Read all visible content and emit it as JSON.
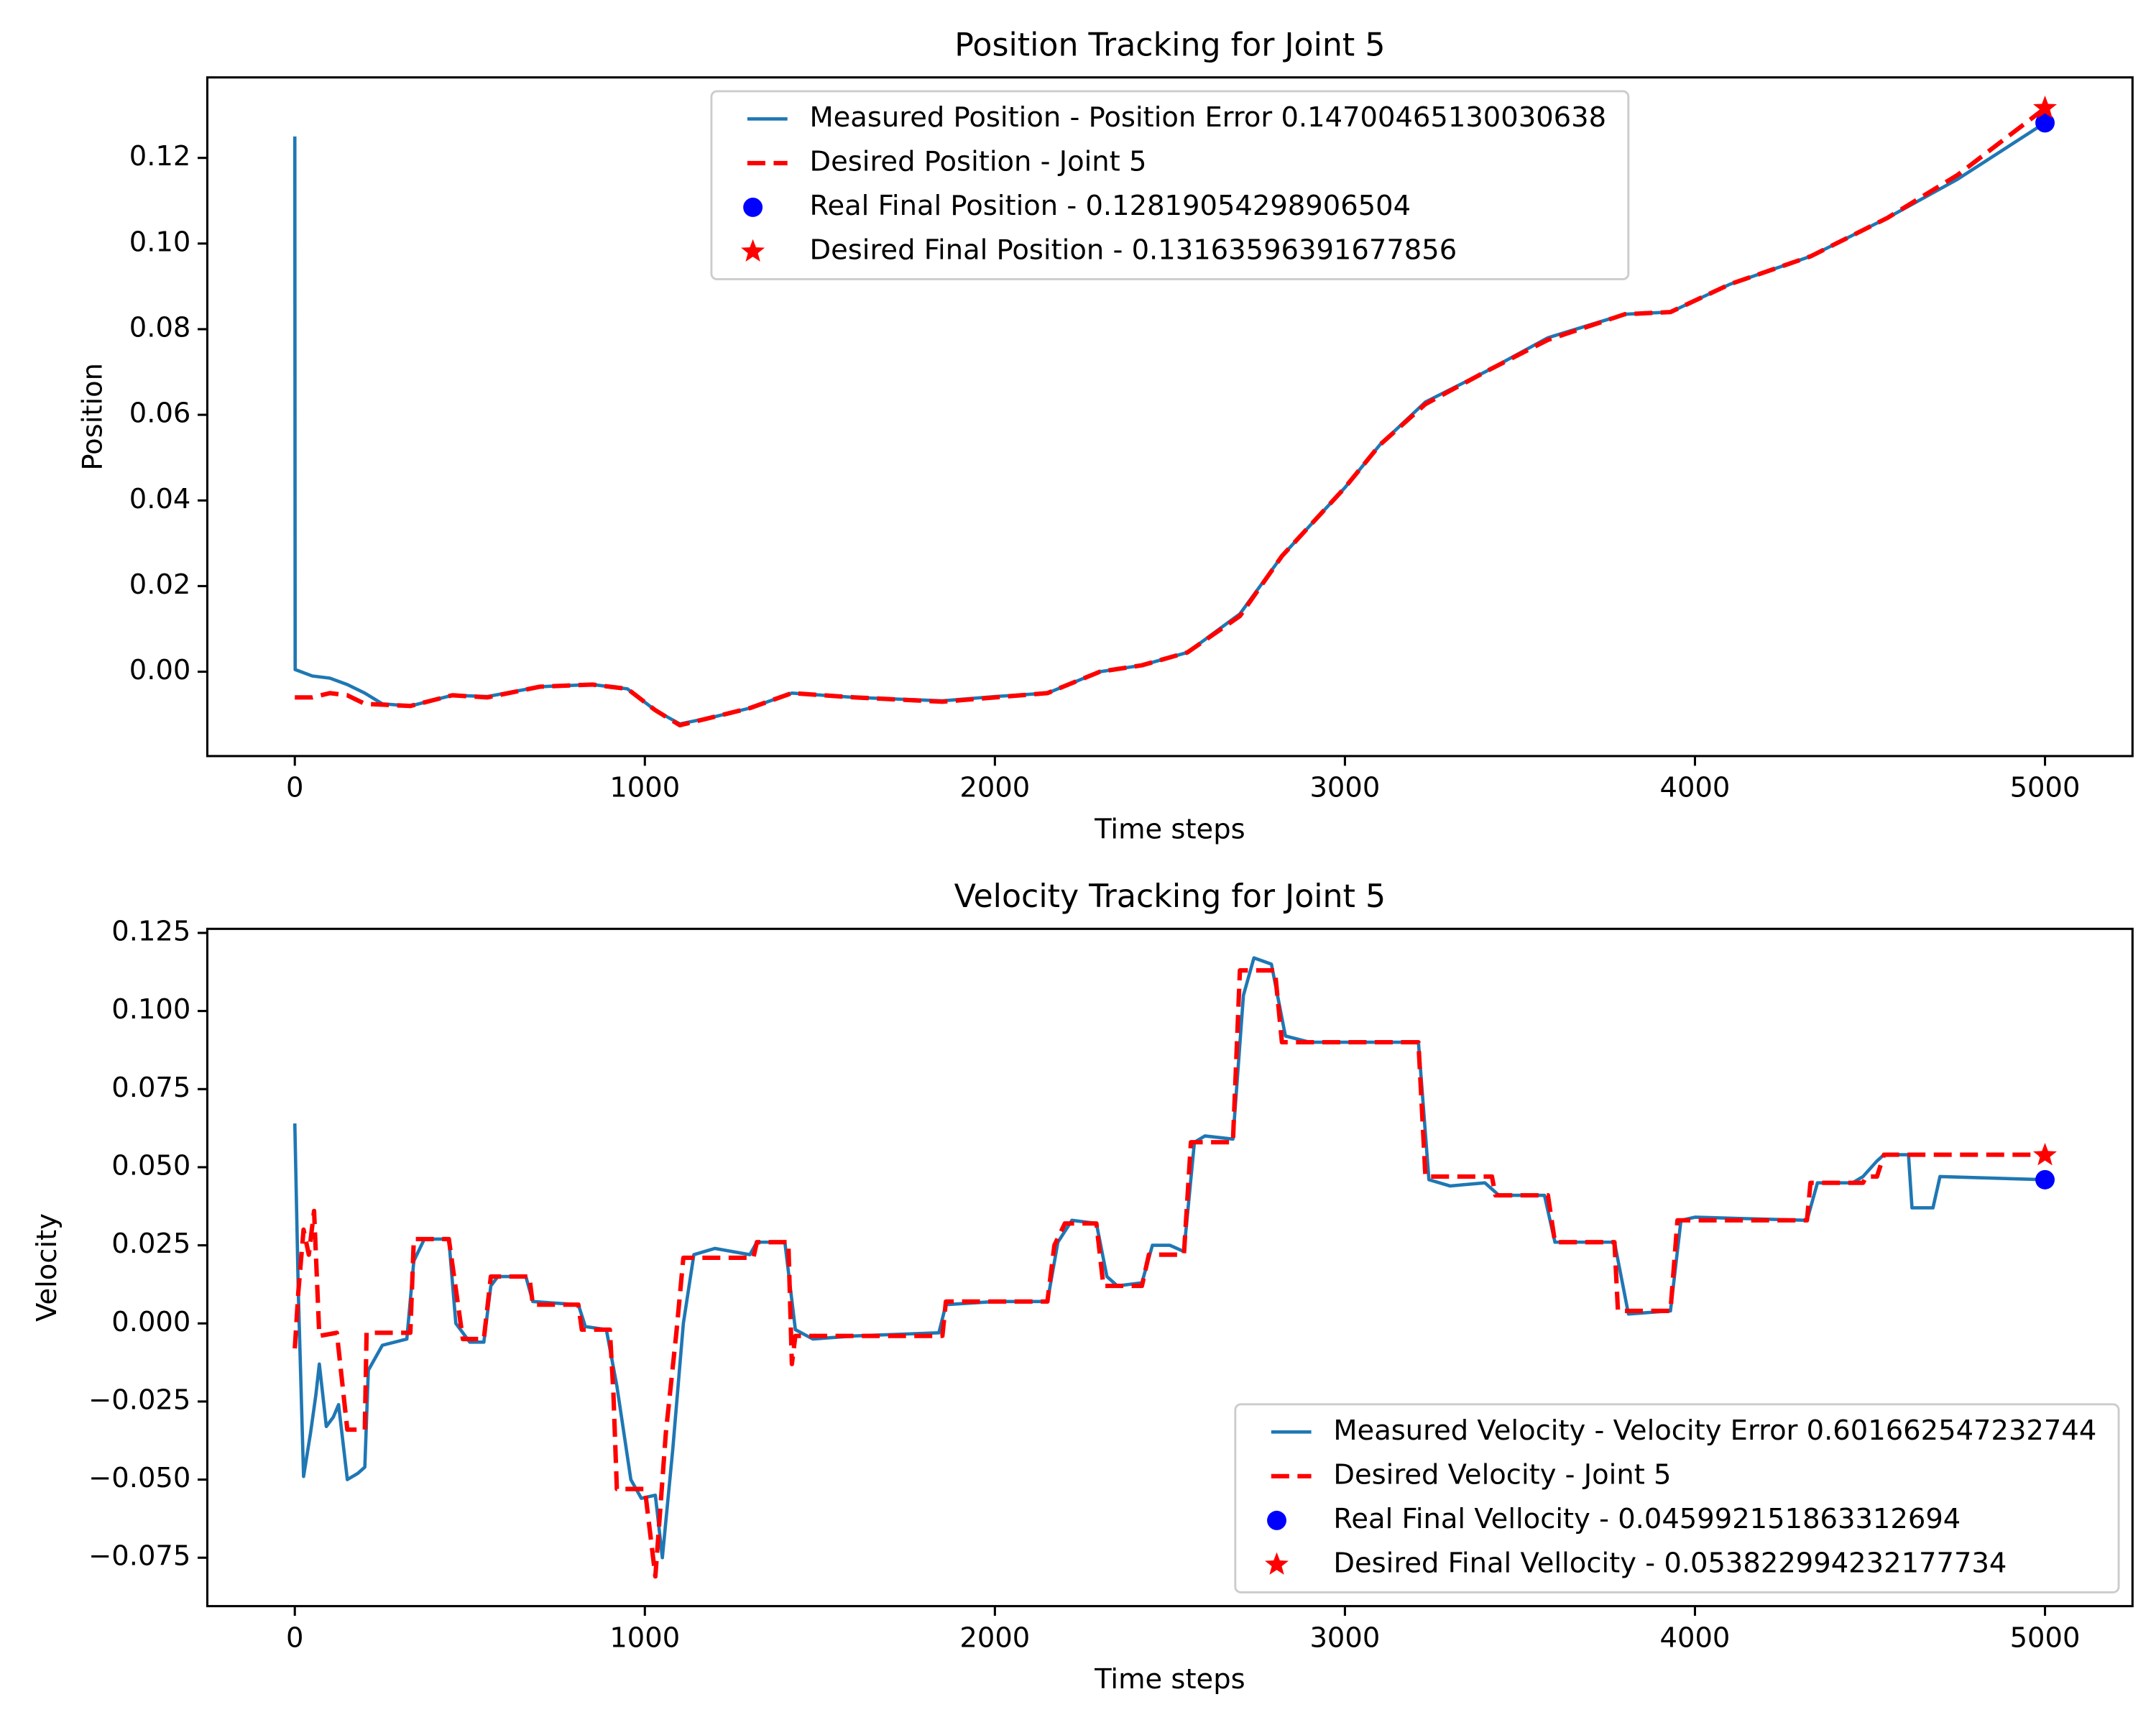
{
  "chart_data": [
    {
      "type": "line",
      "title": "Position Tracking for Joint 5",
      "xlabel": "Time steps",
      "ylabel": "Position",
      "xlim": [
        -250,
        5250
      ],
      "xticks": [
        0,
        1000,
        2000,
        3000,
        4000,
        5000
      ],
      "ylim": [
        -0.0197,
        0.1388
      ],
      "yticks": [
        {
          "value": 0.0,
          "label": "0.00"
        },
        {
          "value": 0.02,
          "label": "0.02"
        },
        {
          "value": 0.04,
          "label": "0.04"
        },
        {
          "value": 0.06,
          "label": "0.06"
        },
        {
          "value": 0.08,
          "label": "0.08"
        },
        {
          "value": 0.1,
          "label": "0.10"
        },
        {
          "value": 0.12,
          "label": "0.12"
        }
      ],
      "legend": "upper center",
      "series": [
        {
          "name": "Measured Position - Position Error 0.14700465130030638",
          "type": "line",
          "color": "#1f77b4",
          "linestyle": "solid",
          "x": [
            0,
            1,
            50,
            100,
            150,
            200,
            250,
            330,
            450,
            550,
            700,
            850,
            950,
            1030,
            1100,
            1200,
            1300,
            1420,
            1600,
            1850,
            2000,
            2150,
            2300,
            2420,
            2550,
            2700,
            2820,
            3000,
            3100,
            3230,
            3400,
            3580,
            3800,
            3930,
            4100,
            4330,
            4550,
            4750,
            5000
          ],
          "values": [
            0.125,
            0.0005,
            -0.001,
            -0.0015,
            -0.003,
            -0.005,
            -0.0075,
            -0.008,
            -0.0055,
            -0.0058,
            -0.0035,
            -0.003,
            -0.004,
            -0.009,
            -0.0122,
            -0.0105,
            -0.0085,
            -0.005,
            -0.006,
            -0.0068,
            -0.0058,
            -0.005,
            0.0,
            0.0015,
            0.0045,
            0.0135,
            0.027,
            0.043,
            0.053,
            0.063,
            0.07,
            0.078,
            0.0835,
            0.084,
            0.0905,
            0.097,
            0.106,
            0.115,
            0.1282
          ]
        },
        {
          "name": "Desired Position - Joint 5",
          "type": "line",
          "color": "red",
          "linestyle": "dashed",
          "x": [
            0,
            50,
            100,
            150,
            200,
            330,
            450,
            550,
            700,
            850,
            950,
            1030,
            1100,
            1200,
            1300,
            1420,
            1600,
            1850,
            2000,
            2150,
            2300,
            2420,
            2550,
            2700,
            2820,
            3000,
            3100,
            3230,
            3400,
            3580,
            3800,
            3930,
            4100,
            4330,
            4550,
            4750,
            5000
          ],
          "values": [
            -0.006,
            -0.006,
            -0.005,
            -0.0055,
            -0.0075,
            -0.008,
            -0.0055,
            -0.006,
            -0.0035,
            -0.003,
            -0.004,
            -0.009,
            -0.0125,
            -0.0105,
            -0.0085,
            -0.005,
            -0.006,
            -0.007,
            -0.006,
            -0.005,
            0.0,
            0.0015,
            0.0045,
            0.013,
            0.027,
            0.043,
            0.053,
            0.0625,
            0.07,
            0.0775,
            0.0835,
            0.084,
            0.0905,
            0.097,
            0.106,
            0.116,
            0.1316
          ]
        },
        {
          "name": "Real Final Position - 0.12819054298906504",
          "type": "scatter",
          "marker": "circle",
          "color": "blue",
          "x": [
            5000
          ],
          "values": [
            0.12819054298906504
          ]
        },
        {
          "name": "Desired Final Position - 0.13163596391677856",
          "type": "scatter",
          "marker": "star",
          "color": "red",
          "x": [
            5000
          ],
          "values": [
            0.13163596391677856
          ]
        }
      ]
    },
    {
      "type": "line",
      "title": "Velocity Tracking for Joint 5",
      "xlabel": "Time steps",
      "ylabel": "Velocity",
      "xlim": [
        -250,
        5250
      ],
      "xticks": [
        0,
        1000,
        2000,
        3000,
        4000,
        5000
      ],
      "ylim": [
        -0.0905,
        0.1263
      ],
      "yticks": [
        {
          "value": -0.075,
          "label": "−0.075"
        },
        {
          "value": -0.05,
          "label": "−0.050"
        },
        {
          "value": -0.025,
          "label": "−0.025"
        },
        {
          "value": 0.0,
          "label": "0.000"
        },
        {
          "value": 0.025,
          "label": "0.025"
        },
        {
          "value": 0.05,
          "label": "0.050"
        },
        {
          "value": 0.075,
          "label": "0.075"
        },
        {
          "value": 0.1,
          "label": "0.100"
        },
        {
          "value": 0.125,
          "label": "0.125"
        }
      ],
      "legend": "lower right",
      "series": [
        {
          "name": "Measured Velocity - Velocity Error 0.601662547232744",
          "type": "line",
          "color": "#1f77b4",
          "linestyle": "solid",
          "x": [
            0,
            10,
            25,
            45,
            60,
            70,
            90,
            110,
            125,
            150,
            180,
            200,
            210,
            250,
            320,
            340,
            370,
            440,
            460,
            500,
            540,
            560,
            580,
            660,
            680,
            810,
            830,
            890,
            920,
            960,
            990,
            1030,
            1050,
            1080,
            1110,
            1140,
            1200,
            1300,
            1320,
            1400,
            1430,
            1480,
            1600,
            1840,
            1860,
            2000,
            2150,
            2180,
            2220,
            2290,
            2320,
            2350,
            2420,
            2450,
            2500,
            2540,
            2570,
            2600,
            2680,
            2710,
            2740,
            2790,
            2830,
            2900,
            3210,
            3240,
            3300,
            3400,
            3440,
            3570,
            3600,
            3700,
            3770,
            3810,
            3930,
            3960,
            4000,
            4320,
            4350,
            4450,
            4480,
            4520,
            4540,
            4610,
            4620,
            4680,
            4700,
            5000
          ],
          "values": [
            0.064,
            0.01,
            -0.049,
            -0.035,
            -0.023,
            -0.013,
            -0.033,
            -0.03,
            -0.026,
            -0.05,
            -0.048,
            -0.046,
            -0.015,
            -0.007,
            -0.005,
            0.02,
            0.027,
            0.027,
            0.0,
            -0.006,
            -0.006,
            0.012,
            0.015,
            0.015,
            0.007,
            0.006,
            -0.001,
            -0.002,
            -0.02,
            -0.05,
            -0.056,
            -0.055,
            -0.075,
            -0.04,
            0.0,
            0.022,
            0.024,
            0.022,
            0.026,
            0.026,
            -0.002,
            -0.005,
            -0.004,
            -0.003,
            0.006,
            0.007,
            0.007,
            0.026,
            0.033,
            0.032,
            0.015,
            0.012,
            0.013,
            0.025,
            0.025,
            0.023,
            0.058,
            0.06,
            0.059,
            0.105,
            0.117,
            0.115,
            0.092,
            0.09,
            0.09,
            0.046,
            0.044,
            0.045,
            0.041,
            0.041,
            0.026,
            0.026,
            0.026,
            0.003,
            0.004,
            0.033,
            0.034,
            0.033,
            0.045,
            0.045,
            0.047,
            0.052,
            0.054,
            0.054,
            0.037,
            0.037,
            0.047,
            0.046
          ]
        },
        {
          "name": "Desired Velocity - Joint 5",
          "type": "line",
          "color": "red",
          "linestyle": "dashed",
          "x": [
            0,
            10,
            25,
            40,
            55,
            70,
            120,
            150,
            200,
            205,
            330,
            340,
            440,
            480,
            540,
            560,
            670,
            680,
            810,
            820,
            900,
            910,
            920,
            1000,
            1030,
            1060,
            1090,
            1110,
            1310,
            1320,
            1410,
            1420,
            1430,
            1850,
            1860,
            2150,
            2170,
            2200,
            2290,
            2310,
            2420,
            2440,
            2540,
            2560,
            2680,
            2700,
            2800,
            2820,
            3210,
            3230,
            3420,
            3430,
            3580,
            3600,
            3770,
            3780,
            3930,
            3950,
            4320,
            4330,
            4480,
            4490,
            4520,
            4540,
            5000
          ],
          "values": [
            -0.008,
            0.01,
            0.03,
            0.022,
            0.036,
            -0.004,
            -0.003,
            -0.034,
            -0.034,
            -0.003,
            -0.003,
            0.027,
            0.027,
            -0.005,
            -0.005,
            0.015,
            0.015,
            0.006,
            0.006,
            -0.002,
            -0.002,
            -0.022,
            -0.053,
            -0.053,
            -0.081,
            -0.035,
            -0.003,
            0.021,
            0.021,
            0.026,
            0.026,
            -0.013,
            -0.004,
            -0.004,
            0.007,
            0.007,
            0.025,
            0.032,
            0.032,
            0.012,
            0.012,
            0.022,
            0.022,
            0.058,
            0.058,
            0.113,
            0.113,
            0.09,
            0.09,
            0.047,
            0.047,
            0.041,
            0.041,
            0.026,
            0.026,
            0.004,
            0.004,
            0.033,
            0.033,
            0.045,
            0.045,
            0.047,
            0.047,
            0.054,
            0.054
          ]
        },
        {
          "name": "Real Final Vellocity - 0.045992151863312694",
          "type": "scatter",
          "marker": "circle",
          "color": "blue",
          "x": [
            5000
          ],
          "values": [
            0.045992151863312694
          ]
        },
        {
          "name": "Desired Final Vellocity - 0.053822994232177734",
          "type": "scatter",
          "marker": "star",
          "color": "red",
          "x": [
            5000
          ],
          "values": [
            0.053822994232177734
          ]
        }
      ]
    }
  ]
}
